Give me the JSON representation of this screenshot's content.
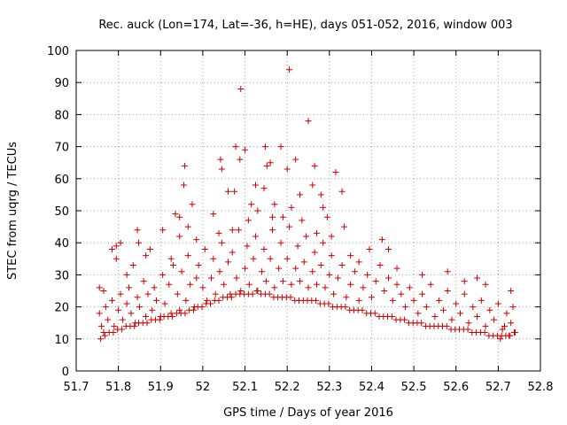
{
  "chart_data": {
    "type": "scatter",
    "title": "Rec. auck (Lon=174, Lat=-36, h=HE), days 051-052, 2016, window 003",
    "xlabel": "GPS time / Days of year 2016",
    "ylabel": "STEC from uqrg / TECUs",
    "xlim": [
      51.7,
      52.8
    ],
    "ylim": [
      0,
      100
    ],
    "xticks": [
      51.7,
      51.8,
      51.9,
      52.0,
      52.1,
      52.2,
      52.3,
      52.4,
      52.5,
      52.6,
      52.7,
      52.8
    ],
    "xtick_labels": [
      "51.7",
      "51.8",
      "51.9",
      "52",
      "52.1",
      "52.2",
      "52.3",
      "52.4",
      "52.5",
      "52.6",
      "52.7",
      "52.8"
    ],
    "yticks": [
      0,
      10,
      20,
      30,
      40,
      50,
      60,
      70,
      80,
      90,
      100
    ],
    "ytick_labels": [
      "0",
      "10",
      "20",
      "30",
      "40",
      "50",
      "60",
      "70",
      "80",
      "90",
      "100"
    ],
    "marker": "+",
    "marker_color": "#cc0000",
    "grid": true,
    "points": [
      [
        51.755,
        26
      ],
      [
        51.765,
        25
      ],
      [
        51.785,
        38
      ],
      [
        51.795,
        39
      ],
      [
        51.795,
        35
      ],
      [
        51.805,
        40
      ],
      [
        51.82,
        30
      ],
      [
        51.835,
        33
      ],
      [
        51.845,
        44
      ],
      [
        51.848,
        40
      ],
      [
        51.865,
        36
      ],
      [
        51.875,
        38
      ],
      [
        51.905,
        44
      ],
      [
        51.925,
        35
      ],
      [
        51.935,
        49
      ],
      [
        51.945,
        48
      ],
      [
        51.945,
        42
      ],
      [
        51.955,
        58
      ],
      [
        51.957,
        64
      ],
      [
        51.965,
        45
      ],
      [
        51.975,
        52
      ],
      [
        51.985,
        41
      ],
      [
        52.025,
        49
      ],
      [
        52.038,
        43
      ],
      [
        52.042,
        66
      ],
      [
        52.045,
        63
      ],
      [
        52.06,
        56
      ],
      [
        52.07,
        44
      ],
      [
        52.075,
        56
      ],
      [
        52.078,
        70
      ],
      [
        52.088,
        66
      ],
      [
        52.09,
        88
      ],
      [
        52.1,
        69
      ],
      [
        52.108,
        47
      ],
      [
        52.115,
        52
      ],
      [
        52.125,
        58
      ],
      [
        52.13,
        50
      ],
      [
        52.145,
        57
      ],
      [
        52.148,
        70
      ],
      [
        52.152,
        64
      ],
      [
        52.16,
        65
      ],
      [
        52.165,
        48
      ],
      [
        52.17,
        52
      ],
      [
        52.185,
        70
      ],
      [
        52.19,
        48
      ],
      [
        52.2,
        63
      ],
      [
        52.205,
        94
      ],
      [
        52.21,
        51
      ],
      [
        52.22,
        66
      ],
      [
        52.23,
        55
      ],
      [
        52.235,
        47
      ],
      [
        52.25,
        78
      ],
      [
        52.26,
        58
      ],
      [
        52.265,
        64
      ],
      [
        52.27,
        43
      ],
      [
        52.28,
        55
      ],
      [
        52.285,
        51
      ],
      [
        52.295,
        48
      ],
      [
        52.305,
        42
      ],
      [
        52.315,
        62
      ],
      [
        52.33,
        56
      ],
      [
        52.335,
        45
      ],
      [
        52.35,
        36
      ],
      [
        52.37,
        34
      ],
      [
        52.395,
        38
      ],
      [
        52.425,
        41
      ],
      [
        52.44,
        38
      ],
      [
        52.46,
        32
      ],
      [
        52.52,
        30
      ],
      [
        52.58,
        31
      ],
      [
        52.62,
        28
      ],
      [
        52.65,
        29
      ],
      [
        52.67,
        27
      ],
      [
        52.73,
        25
      ],
      [
        51.755,
        18
      ],
      [
        51.76,
        14
      ],
      [
        51.765,
        12
      ],
      [
        51.77,
        20
      ],
      [
        51.775,
        16
      ],
      [
        51.785,
        22
      ],
      [
        51.79,
        14
      ],
      [
        51.8,
        19
      ],
      [
        51.805,
        24
      ],
      [
        51.81,
        16
      ],
      [
        51.82,
        21
      ],
      [
        51.825,
        26
      ],
      [
        51.83,
        18
      ],
      [
        51.84,
        15
      ],
      [
        51.845,
        23
      ],
      [
        51.85,
        20
      ],
      [
        51.86,
        28
      ],
      [
        51.865,
        17
      ],
      [
        51.87,
        24
      ],
      [
        51.88,
        19
      ],
      [
        51.885,
        26
      ],
      [
        51.89,
        22
      ],
      [
        51.9,
        17
      ],
      [
        51.905,
        30
      ],
      [
        51.91,
        21
      ],
      [
        51.92,
        27
      ],
      [
        51.925,
        18
      ],
      [
        51.93,
        33
      ],
      [
        51.94,
        24
      ],
      [
        51.945,
        19
      ],
      [
        51.95,
        31
      ],
      [
        51.96,
        22
      ],
      [
        51.965,
        36
      ],
      [
        51.97,
        27
      ],
      [
        51.98,
        20
      ],
      [
        51.985,
        29
      ],
      [
        51.99,
        33
      ],
      [
        52.0,
        26
      ],
      [
        52.005,
        38
      ],
      [
        52.01,
        22
      ],
      [
        52.02,
        29
      ],
      [
        52.025,
        35
      ],
      [
        52.03,
        24
      ],
      [
        52.04,
        31
      ],
      [
        52.045,
        40
      ],
      [
        52.05,
        27
      ],
      [
        52.06,
        34
      ],
      [
        52.065,
        24
      ],
      [
        52.07,
        37
      ],
      [
        52.08,
        29
      ],
      [
        52.085,
        44
      ],
      [
        52.09,
        25
      ],
      [
        52.1,
        32
      ],
      [
        52.105,
        39
      ],
      [
        52.11,
        27
      ],
      [
        52.12,
        35
      ],
      [
        52.125,
        42
      ],
      [
        52.13,
        25
      ],
      [
        52.14,
        31
      ],
      [
        52.145,
        38
      ],
      [
        52.15,
        28
      ],
      [
        52.16,
        35
      ],
      [
        52.165,
        44
      ],
      [
        52.17,
        26
      ],
      [
        52.18,
        32
      ],
      [
        52.185,
        40
      ],
      [
        52.19,
        28
      ],
      [
        52.2,
        35
      ],
      [
        52.205,
        45
      ],
      [
        52.21,
        27
      ],
      [
        52.22,
        32
      ],
      [
        52.225,
        39
      ],
      [
        52.23,
        28
      ],
      [
        52.24,
        34
      ],
      [
        52.245,
        42
      ],
      [
        52.25,
        26
      ],
      [
        52.26,
        31
      ],
      [
        52.265,
        37
      ],
      [
        52.27,
        27
      ],
      [
        52.28,
        33
      ],
      [
        52.285,
        40
      ],
      [
        52.29,
        26
      ],
      [
        52.3,
        30
      ],
      [
        52.305,
        36
      ],
      [
        52.31,
        24
      ],
      [
        52.32,
        29
      ],
      [
        52.33,
        33
      ],
      [
        52.34,
        23
      ],
      [
        52.35,
        27
      ],
      [
        52.36,
        31
      ],
      [
        52.37,
        22
      ],
      [
        52.38,
        26
      ],
      [
        52.39,
        30
      ],
      [
        52.4,
        23
      ],
      [
        52.41,
        28
      ],
      [
        52.42,
        33
      ],
      [
        52.43,
        25
      ],
      [
        52.44,
        29
      ],
      [
        52.45,
        22
      ],
      [
        52.46,
        27
      ],
      [
        52.47,
        24
      ],
      [
        52.48,
        20
      ],
      [
        52.49,
        26
      ],
      [
        52.5,
        22
      ],
      [
        52.51,
        18
      ],
      [
        52.52,
        24
      ],
      [
        52.53,
        20
      ],
      [
        52.54,
        27
      ],
      [
        52.55,
        17
      ],
      [
        52.56,
        22
      ],
      [
        52.57,
        19
      ],
      [
        52.58,
        25
      ],
      [
        52.59,
        16
      ],
      [
        52.6,
        21
      ],
      [
        52.61,
        18
      ],
      [
        52.62,
        24
      ],
      [
        52.63,
        15
      ],
      [
        52.64,
        20
      ],
      [
        52.65,
        17
      ],
      [
        52.66,
        22
      ],
      [
        52.67,
        14
      ],
      [
        52.68,
        19
      ],
      [
        52.69,
        16
      ],
      [
        52.7,
        21
      ],
      [
        52.71,
        13
      ],
      [
        52.72,
        18
      ],
      [
        52.73,
        15
      ],
      [
        52.74,
        12
      ],
      [
        52.735,
        20
      ],
      [
        52.725,
        11
      ],
      [
        52.715,
        14
      ],
      [
        52.705,
        10
      ],
      [
        51.758,
        10
      ],
      [
        51.768,
        11
      ],
      [
        51.778,
        12
      ],
      [
        51.788,
        12
      ],
      [
        51.798,
        13
      ],
      [
        51.808,
        13
      ],
      [
        51.818,
        14
      ],
      [
        51.828,
        14
      ],
      [
        51.838,
        14
      ],
      [
        51.848,
        15
      ],
      [
        51.858,
        15
      ],
      [
        51.868,
        15
      ],
      [
        51.878,
        16
      ],
      [
        51.888,
        16
      ],
      [
        51.898,
        16
      ],
      [
        51.908,
        17
      ],
      [
        51.918,
        17
      ],
      [
        51.928,
        17
      ],
      [
        51.938,
        18
      ],
      [
        51.948,
        18
      ],
      [
        51.958,
        18
      ],
      [
        51.968,
        19
      ],
      [
        51.978,
        19
      ],
      [
        51.988,
        20
      ],
      [
        51.998,
        20
      ],
      [
        52.008,
        21
      ],
      [
        52.018,
        21
      ],
      [
        52.028,
        22
      ],
      [
        52.038,
        22
      ],
      [
        52.048,
        23
      ],
      [
        52.058,
        23
      ],
      [
        52.068,
        23
      ],
      [
        52.078,
        24
      ],
      [
        52.088,
        24
      ],
      [
        52.098,
        24
      ],
      [
        52.108,
        24
      ],
      [
        52.118,
        24
      ],
      [
        52.128,
        25
      ],
      [
        52.138,
        24
      ],
      [
        52.148,
        24
      ],
      [
        52.158,
        24
      ],
      [
        52.168,
        23
      ],
      [
        52.178,
        23
      ],
      [
        52.188,
        23
      ],
      [
        52.198,
        23
      ],
      [
        52.208,
        23
      ],
      [
        52.218,
        22
      ],
      [
        52.228,
        22
      ],
      [
        52.238,
        22
      ],
      [
        52.248,
        22
      ],
      [
        52.258,
        22
      ],
      [
        52.268,
        22
      ],
      [
        52.278,
        21
      ],
      [
        52.288,
        21
      ],
      [
        52.298,
        21
      ],
      [
        52.308,
        20
      ],
      [
        52.318,
        20
      ],
      [
        52.328,
        20
      ],
      [
        52.338,
        20
      ],
      [
        52.348,
        19
      ],
      [
        52.358,
        19
      ],
      [
        52.368,
        19
      ],
      [
        52.378,
        19
      ],
      [
        52.388,
        18
      ],
      [
        52.398,
        18
      ],
      [
        52.408,
        18
      ],
      [
        52.418,
        17
      ],
      [
        52.428,
        17
      ],
      [
        52.438,
        17
      ],
      [
        52.448,
        17
      ],
      [
        52.458,
        16
      ],
      [
        52.468,
        16
      ],
      [
        52.478,
        16
      ],
      [
        52.488,
        15
      ],
      [
        52.498,
        15
      ],
      [
        52.508,
        15
      ],
      [
        52.518,
        15
      ],
      [
        52.528,
        14
      ],
      [
        52.538,
        14
      ],
      [
        52.548,
        14
      ],
      [
        52.558,
        14
      ],
      [
        52.568,
        14
      ],
      [
        52.578,
        14
      ],
      [
        52.588,
        13
      ],
      [
        52.598,
        13
      ],
      [
        52.608,
        13
      ],
      [
        52.618,
        13
      ],
      [
        52.628,
        13
      ],
      [
        52.638,
        12
      ],
      [
        52.648,
        12
      ],
      [
        52.658,
        12
      ],
      [
        52.668,
        12
      ],
      [
        52.678,
        11
      ],
      [
        52.688,
        11
      ],
      [
        52.698,
        11
      ],
      [
        52.708,
        11
      ],
      [
        52.718,
        11
      ],
      [
        52.728,
        11
      ],
      [
        52.738,
        12
      ]
    ]
  }
}
